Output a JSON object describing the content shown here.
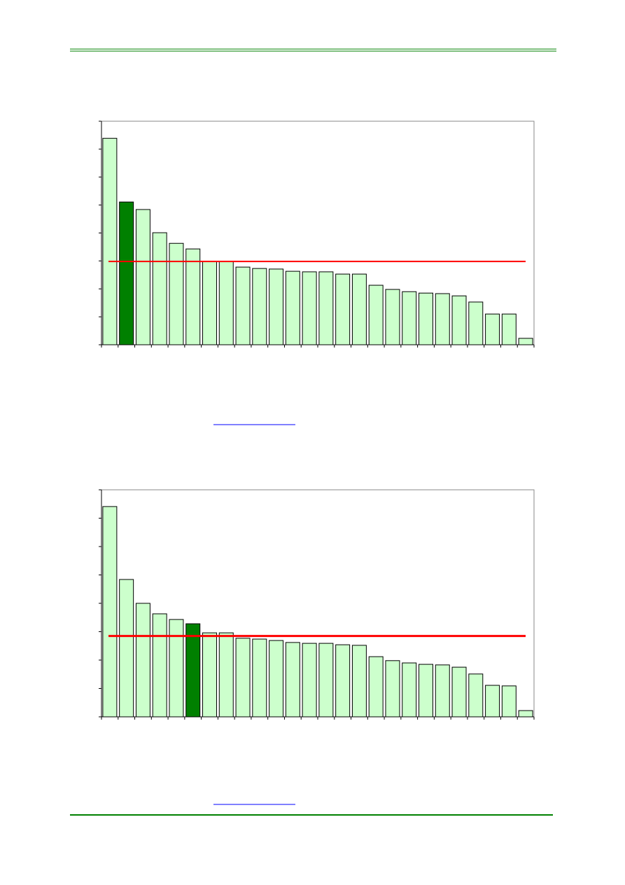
{
  "chart_data": [
    {
      "type": "bar",
      "categories": [
        null,
        null,
        null,
        null,
        null,
        null,
        null,
        null,
        null,
        null,
        null,
        null,
        null,
        null,
        null,
        null,
        null,
        null,
        null,
        null,
        null,
        null,
        null,
        null,
        null,
        null
      ],
      "values": [
        7.39,
        5.11,
        4.84,
        4.01,
        3.63,
        3.43,
        2.98,
        2.98,
        2.78,
        2.73,
        2.71,
        2.63,
        2.61,
        2.61,
        2.53,
        2.53,
        2.13,
        1.98,
        1.9,
        1.85,
        1.83,
        1.75,
        1.53,
        1.1,
        1.1,
        0.23
      ],
      "color": "#ccffcc",
      "highlight_index": 1,
      "highlight_color": "#008000",
      "reference_line": {
        "value": 2.98,
        "color": "#ff0000"
      },
      "ylim": [
        0,
        8
      ],
      "yticks": [
        0,
        1,
        2,
        3,
        4,
        5,
        6,
        7,
        8
      ],
      "grid": false
    },
    {
      "type": "bar",
      "categories": [
        null,
        null,
        null,
        null,
        null,
        null,
        null,
        null,
        null,
        null,
        null,
        null,
        null,
        null,
        null,
        null,
        null,
        null,
        null,
        null,
        null,
        null,
        null,
        null,
        null,
        null
      ],
      "values": [
        7.41,
        4.84,
        4.0,
        3.63,
        3.43,
        3.28,
        2.96,
        2.96,
        2.77,
        2.74,
        2.69,
        2.62,
        2.59,
        2.59,
        2.54,
        2.52,
        2.12,
        1.98,
        1.9,
        1.85,
        1.83,
        1.75,
        1.51,
        1.11,
        1.09,
        0.22
      ],
      "color": "#ccffcc",
      "highlight_index": 5,
      "highlight_color": "#008000",
      "reference_line": {
        "value": 2.85,
        "color": "#ff0000"
      },
      "ylim": [
        0,
        8
      ],
      "yticks": [
        0,
        1,
        2,
        3,
        4,
        5,
        6,
        7,
        8
      ],
      "grid": false
    }
  ]
}
